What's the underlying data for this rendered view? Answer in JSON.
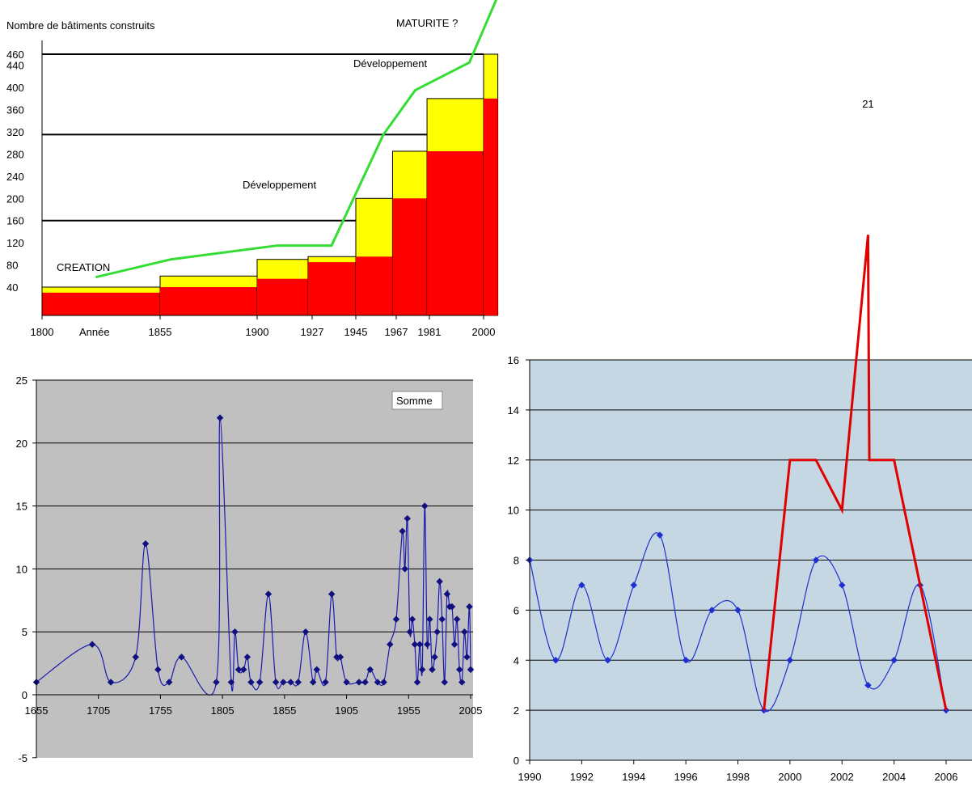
{
  "chart_data": [
    {
      "type": "area",
      "ylabel": "Nombre de bâtiments construits",
      "xlabel": "Année",
      "x_ticks": [
        "1800",
        "1855",
        "1900",
        "1927",
        "1945",
        "1967",
        "1981",
        "2000"
      ],
      "y_ticks": [
        "40",
        "80",
        "120",
        "160",
        "200",
        "240",
        "280",
        "320",
        "360",
        "400",
        "440",
        "460"
      ],
      "steps": {
        "x_edges": [
          1800,
          1855,
          1900,
          1925,
          1945,
          1965,
          1980,
          2000,
          2005
        ],
        "yellow": [
          40,
          60,
          90,
          95,
          200,
          285,
          380,
          460
        ],
        "red": [
          30,
          40,
          55,
          85,
          95,
          200,
          285,
          380
        ]
      },
      "reference_lines": [
        {
          "y": 460,
          "x_end": 2000
        },
        {
          "y": 315,
          "x_end": 1980
        },
        {
          "y": 160,
          "x_end": 1945
        }
      ],
      "growth_curve": {
        "x": [
          1825,
          1860,
          1910,
          1935,
          1960,
          1975,
          1995,
          2005
        ],
        "y": [
          58,
          90,
          115,
          115,
          315,
          395,
          445,
          565
        ]
      },
      "annotations": [
        "CREATION",
        "Développement",
        "Développement",
        "MATURITE ?"
      ]
    },
    {
      "type": "line",
      "legend": "Somme",
      "ylim": [
        -5,
        25
      ],
      "y_ticks": [
        "-5",
        "0",
        "5",
        "10",
        "15",
        "20",
        "25"
      ],
      "x_ticks": [
        "1655",
        "1705",
        "1755",
        "1805",
        "1855",
        "1905",
        "1955",
        "2005"
      ],
      "x": [
        1655,
        1700,
        1715,
        1735,
        1743,
        1753,
        1762,
        1772,
        1800,
        1803,
        1812,
        1815,
        1818,
        1822,
        1825,
        1828,
        1835,
        1842,
        1848,
        1854,
        1860,
        1866,
        1872,
        1878,
        1881,
        1888,
        1893,
        1897,
        1900,
        1905,
        1915,
        1920,
        1924,
        1930,
        1935,
        1940,
        1945,
        1950,
        1952,
        1954,
        1956,
        1958,
        1960,
        1962,
        1964,
        1966,
        1968,
        1970,
        1972,
        1974,
        1976,
        1978,
        1980,
        1982,
        1984,
        1986,
        1988,
        1990,
        1992,
        1994,
        1996,
        1998,
        2000,
        2002,
        2004,
        2005
      ],
      "y": [
        1,
        4,
        1,
        3,
        12,
        2,
        1,
        3,
        1,
        22,
        1,
        5,
        2,
        2,
        3,
        1,
        1,
        8,
        1,
        1,
        1,
        1,
        5,
        1,
        2,
        1,
        8,
        3,
        3,
        1,
        1,
        1,
        2,
        1,
        1,
        4,
        6,
        13,
        10,
        14,
        5,
        6,
        4,
        1,
        4,
        2,
        15,
        4,
        6,
        2,
        3,
        5,
        9,
        6,
        1,
        8,
        7,
        7,
        4,
        6,
        2,
        1,
        5,
        3,
        7,
        2
      ]
    },
    {
      "type": "line",
      "ylim": [
        0,
        16
      ],
      "y_ticks": [
        "0",
        "2",
        "4",
        "6",
        "8",
        "10",
        "12",
        "14",
        "16"
      ],
      "x_ticks": [
        "1990",
        "1992",
        "1994",
        "1996",
        "1998",
        "2000",
        "2002",
        "2004",
        "2006"
      ],
      "series": [
        {
          "x": [
            1990,
            1991,
            1992,
            1993,
            1994,
            1995,
            1996,
            1997,
            1998,
            1999,
            2000,
            2001,
            2002,
            2003,
            2004,
            2005,
            2006
          ],
          "y": [
            8,
            4,
            7,
            4,
            7,
            9,
            4,
            6,
            6,
            2,
            4,
            8,
            7,
            3,
            4,
            7,
            2
          ],
          "color": "#1f2fd0"
        },
        {
          "x": [
            1999,
            2000,
            2001,
            2002,
            2003,
            2003.05,
            2004,
            2006
          ],
          "y": [
            2,
            12,
            12,
            10,
            21,
            12,
            12,
            2
          ],
          "color": "#e00000",
          "data_label": "21"
        }
      ]
    }
  ]
}
